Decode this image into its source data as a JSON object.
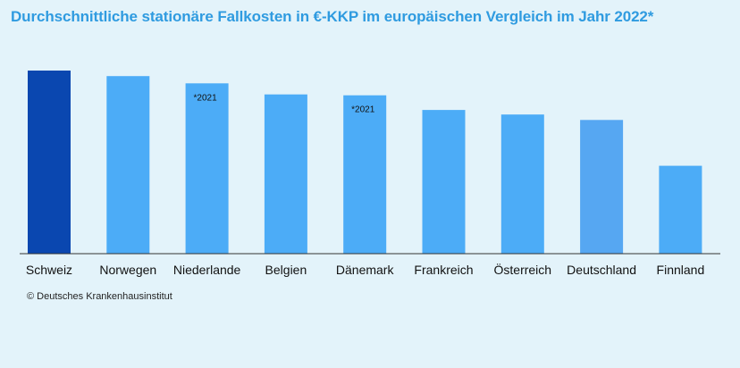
{
  "title": "Durchschnittliche stationäre Fallkosten in €-KKP im europäischen Vergleich im Jahr 2022*",
  "source": "© Deutsches Krankenhausinstitut",
  "chart_data": {
    "type": "bar",
    "title": "Durchschnittliche stationäre Fallkosten in €-KKP im europäischen Vergleich im Jahr 2022*",
    "xlabel": "",
    "ylabel": "",
    "grid": false,
    "y_axis_labels": false,
    "categories": [
      "Schweiz",
      "Norwegen",
      "Niederlande",
      "Belgien",
      "Dänemark",
      "Frankreich",
      "Österreich",
      "Deutschland",
      "Finnland"
    ],
    "values": [
      100,
      97,
      93,
      87,
      86.5,
      78.5,
      76,
      73,
      48
    ],
    "value_scale": "relative (no axis printed; Schweiz = 100)",
    "ylim": [
      0,
      100
    ],
    "annotations": [
      {
        "category": "Niederlande",
        "text": "*2021"
      },
      {
        "category": "Dänemark",
        "text": "*2021"
      }
    ],
    "colors": {
      "highlight": "#0a47b0",
      "default": "#4cacf7",
      "deutschland": "#56a7f2",
      "baseline": "#333333"
    },
    "highlight_categories": [
      "Schweiz"
    ]
  }
}
